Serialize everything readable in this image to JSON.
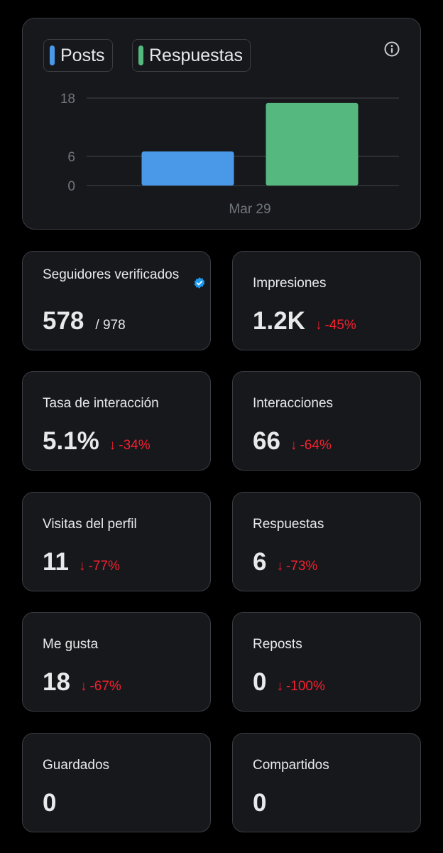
{
  "legend": {
    "posts": "Posts",
    "respuestas": "Respuestas"
  },
  "colors": {
    "posts": "#4a99e9",
    "respuestas": "#55b97f",
    "negative": "#f4212e",
    "verified": "#1d9bf0"
  },
  "chart_data": {
    "type": "bar",
    "categories": [
      "Mar 29"
    ],
    "series": [
      {
        "name": "Posts",
        "values": [
          7
        ]
      },
      {
        "name": "Respuestas",
        "values": [
          17
        ]
      }
    ],
    "yticks": [
      "0",
      "6",
      "18"
    ],
    "ylim": [
      0,
      18
    ]
  },
  "stats": {
    "verified_followers": {
      "label": "Seguidores verificados",
      "value": "578",
      "total": "/ 978"
    },
    "impressions": {
      "label": "Impresiones",
      "value": "1.2K",
      "delta": "-45%"
    },
    "engagement_rate": {
      "label": "Tasa de interacción",
      "value": "5.1%",
      "delta": "-34%"
    },
    "interactions": {
      "label": "Interacciones",
      "value": "66",
      "delta": "-64%"
    },
    "profile_visits": {
      "label": "Visitas del perfil",
      "value": "11",
      "delta": "-77%"
    },
    "replies": {
      "label": "Respuestas",
      "value": "6",
      "delta": "-73%"
    },
    "likes": {
      "label": "Me gusta",
      "value": "18",
      "delta": "-67%"
    },
    "reposts": {
      "label": "Reposts",
      "value": "0",
      "delta": "-100%"
    },
    "bookmarks": {
      "label": "Guardados",
      "value": "0"
    },
    "shares": {
      "label": "Compartidos",
      "value": "0"
    }
  },
  "icons": {
    "info": "info-icon",
    "verified": "verified-badge-icon",
    "down_arrow": "↓"
  }
}
